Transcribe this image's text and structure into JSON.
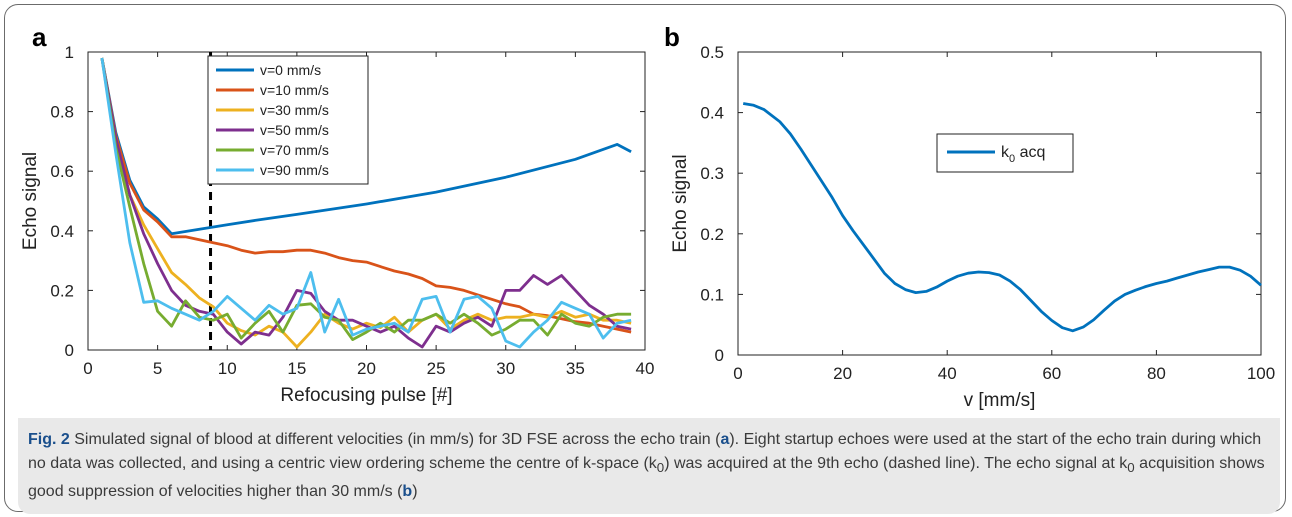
{
  "panel_a_letter": "a",
  "panel_b_letter": "b",
  "caption": {
    "fig_label": "Fig. 2",
    "part1": " Simulated signal of blood at different velocities (in mm/s) for 3D FSE across the echo train (",
    "ref_a": "a",
    "part2": "). Eight startup echoes were used at the start of the echo train during which no data was collected, and using a centric view ordering scheme the centre of k-space (k",
    "sub0": "0",
    "part3": ") was acquired at the 9th echo (dashed line). The echo signal at k",
    "sub1": "0",
    "part4": " acquisition shows good suppression of velocities higher than 30 mm/s (",
    "ref_b": "b",
    "part5": ")"
  },
  "chart_data": [
    {
      "type": "line",
      "panel": "a",
      "xlabel": "Refocusing pulse [#]",
      "ylabel": "Echo signal",
      "xlim": [
        0,
        40
      ],
      "ylim": [
        0,
        1
      ],
      "xticks": [
        0,
        5,
        10,
        15,
        20,
        25,
        30,
        35,
        40
      ],
      "yticks": [
        0,
        0.2,
        0.4,
        0.6,
        0.8,
        1
      ],
      "ytick_labels": [
        "0",
        "0.2",
        "0.4",
        "0.6",
        "0.8",
        "1"
      ],
      "grid": false,
      "legend_position": "top-center",
      "dashed_vline": {
        "x": 8.8,
        "color": "#000000"
      },
      "series": [
        {
          "name": "v=0 mm/s",
          "color": "#0072BD",
          "x": [
            1,
            2,
            3,
            4,
            5,
            6,
            8,
            10,
            12,
            15,
            20,
            25,
            30,
            35,
            38,
            39
          ],
          "y": [
            0.98,
            0.73,
            0.57,
            0.48,
            0.44,
            0.39,
            0.405,
            0.42,
            0.435,
            0.455,
            0.49,
            0.53,
            0.58,
            0.64,
            0.69,
            0.665
          ]
        },
        {
          "name": "v=10 mm/s",
          "color": "#D95319",
          "x": [
            1,
            2,
            3,
            4,
            5,
            6,
            7,
            8,
            9,
            10,
            11,
            12,
            13,
            14,
            15,
            16,
            17,
            18,
            19,
            20,
            21,
            22,
            23,
            24,
            25,
            26,
            27,
            28,
            29,
            30,
            31,
            32,
            33,
            34,
            35,
            36,
            37,
            38,
            39
          ],
          "y": [
            0.98,
            0.72,
            0.56,
            0.47,
            0.43,
            0.38,
            0.38,
            0.37,
            0.36,
            0.35,
            0.335,
            0.325,
            0.33,
            0.33,
            0.335,
            0.335,
            0.325,
            0.31,
            0.3,
            0.295,
            0.28,
            0.265,
            0.255,
            0.24,
            0.215,
            0.21,
            0.2,
            0.185,
            0.17,
            0.155,
            0.145,
            0.12,
            0.115,
            0.105,
            0.095,
            0.09,
            0.08,
            0.07,
            0.06
          ]
        },
        {
          "name": "v=30 mm/s",
          "color": "#EDB120",
          "x": [
            1,
            2,
            3,
            4,
            5,
            6,
            7,
            8,
            9,
            10,
            11,
            12,
            13,
            14,
            15,
            16,
            17,
            18,
            19,
            20,
            21,
            22,
            23,
            24,
            25,
            26,
            27,
            28,
            29,
            30,
            31,
            32,
            33,
            34,
            35,
            36,
            37,
            38,
            39
          ],
          "y": [
            0.98,
            0.7,
            0.52,
            0.42,
            0.34,
            0.26,
            0.22,
            0.175,
            0.145,
            0.09,
            0.065,
            0.05,
            0.08,
            0.06,
            0.01,
            0.06,
            0.12,
            0.09,
            0.07,
            0.09,
            0.075,
            0.11,
            0.06,
            0.1,
            0.12,
            0.07,
            0.1,
            0.12,
            0.1,
            0.11,
            0.11,
            0.12,
            0.11,
            0.13,
            0.11,
            0.12,
            0.1,
            0.1,
            0.09
          ]
        },
        {
          "name": "v=50 mm/s",
          "color": "#7E2F8E",
          "x": [
            1,
            2,
            3,
            4,
            5,
            6,
            7,
            8,
            9,
            10,
            11,
            12,
            13,
            14,
            15,
            16,
            17,
            18,
            19,
            20,
            21,
            22,
            23,
            24,
            25,
            26,
            27,
            28,
            29,
            30,
            31,
            32,
            33,
            34,
            35,
            36,
            37,
            38,
            39
          ],
          "y": [
            0.98,
            0.71,
            0.52,
            0.39,
            0.29,
            0.2,
            0.15,
            0.13,
            0.12,
            0.06,
            0.02,
            0.06,
            0.05,
            0.11,
            0.2,
            0.19,
            0.13,
            0.1,
            0.1,
            0.08,
            0.06,
            0.08,
            0.04,
            0.01,
            0.08,
            0.06,
            0.09,
            0.11,
            0.08,
            0.2,
            0.2,
            0.25,
            0.22,
            0.25,
            0.2,
            0.15,
            0.12,
            0.08,
            0.07
          ]
        },
        {
          "name": "v=70 mm/s",
          "color": "#77AC30",
          "x": [
            1,
            2,
            3,
            4,
            5,
            6,
            7,
            8,
            9,
            10,
            11,
            12,
            13,
            14,
            15,
            16,
            17,
            18,
            19,
            20,
            21,
            22,
            23,
            24,
            25,
            26,
            27,
            28,
            29,
            30,
            31,
            32,
            33,
            34,
            35,
            36,
            37,
            38,
            39
          ],
          "y": [
            0.98,
            0.68,
            0.48,
            0.29,
            0.13,
            0.08,
            0.165,
            0.11,
            0.1,
            0.12,
            0.04,
            0.09,
            0.13,
            0.06,
            0.15,
            0.155,
            0.11,
            0.1,
            0.035,
            0.06,
            0.09,
            0.06,
            0.1,
            0.1,
            0.12,
            0.09,
            0.12,
            0.09,
            0.05,
            0.07,
            0.1,
            0.1,
            0.05,
            0.12,
            0.09,
            0.08,
            0.11,
            0.12,
            0.12
          ]
        },
        {
          "name": "v=90 mm/s",
          "color": "#4DBEEE",
          "x": [
            1,
            2,
            3,
            4,
            5,
            6,
            7,
            8,
            9,
            10,
            11,
            12,
            13,
            14,
            15,
            16,
            17,
            18,
            19,
            20,
            21,
            22,
            23,
            24,
            25,
            26,
            27,
            28,
            29,
            30,
            31,
            32,
            33,
            34,
            35,
            36,
            37,
            38,
            39
          ],
          "y": [
            0.98,
            0.66,
            0.36,
            0.16,
            0.165,
            0.14,
            0.12,
            0.1,
            0.13,
            0.18,
            0.14,
            0.1,
            0.15,
            0.12,
            0.14,
            0.26,
            0.06,
            0.17,
            0.05,
            0.07,
            0.08,
            0.09,
            0.06,
            0.17,
            0.18,
            0.06,
            0.17,
            0.18,
            0.14,
            0.03,
            0.01,
            0.06,
            0.1,
            0.16,
            0.14,
            0.12,
            0.04,
            0.09,
            0.1
          ]
        }
      ]
    },
    {
      "type": "line",
      "panel": "b",
      "xlabel": "v [mm/s]",
      "ylabel": "Echo signal",
      "xlim": [
        0,
        100
      ],
      "ylim": [
        0,
        0.5
      ],
      "xticks": [
        0,
        20,
        40,
        60,
        80,
        100
      ],
      "yticks": [
        0,
        0.1,
        0.2,
        0.3,
        0.4,
        0.5
      ],
      "ytick_labels": [
        "0",
        "0.1",
        "0.2",
        "0.3",
        "0.4",
        "0.5"
      ],
      "grid": false,
      "legend_position": "center",
      "series": [
        {
          "name": "k0 acq",
          "legend_main": "k",
          "legend_sub": "0",
          "legend_tail": " acq",
          "color": "#0072BD",
          "x": [
            1,
            3,
            5,
            8,
            10,
            12,
            15,
            18,
            20,
            22,
            25,
            28,
            30,
            32,
            34,
            36,
            38,
            40,
            42,
            44,
            46,
            48,
            50,
            52,
            54,
            56,
            58,
            60,
            62,
            64,
            66,
            68,
            70,
            72,
            74,
            76,
            78,
            80,
            82,
            84,
            86,
            88,
            90,
            92,
            94,
            96,
            98,
            100
          ],
          "y": [
            0.415,
            0.412,
            0.405,
            0.385,
            0.365,
            0.34,
            0.3,
            0.26,
            0.23,
            0.205,
            0.17,
            0.135,
            0.118,
            0.108,
            0.103,
            0.105,
            0.112,
            0.122,
            0.13,
            0.135,
            0.137,
            0.136,
            0.132,
            0.122,
            0.108,
            0.09,
            0.072,
            0.057,
            0.045,
            0.04,
            0.046,
            0.058,
            0.074,
            0.089,
            0.1,
            0.107,
            0.113,
            0.118,
            0.122,
            0.127,
            0.132,
            0.137,
            0.141,
            0.145,
            0.145,
            0.14,
            0.13,
            0.115
          ]
        }
      ]
    }
  ]
}
